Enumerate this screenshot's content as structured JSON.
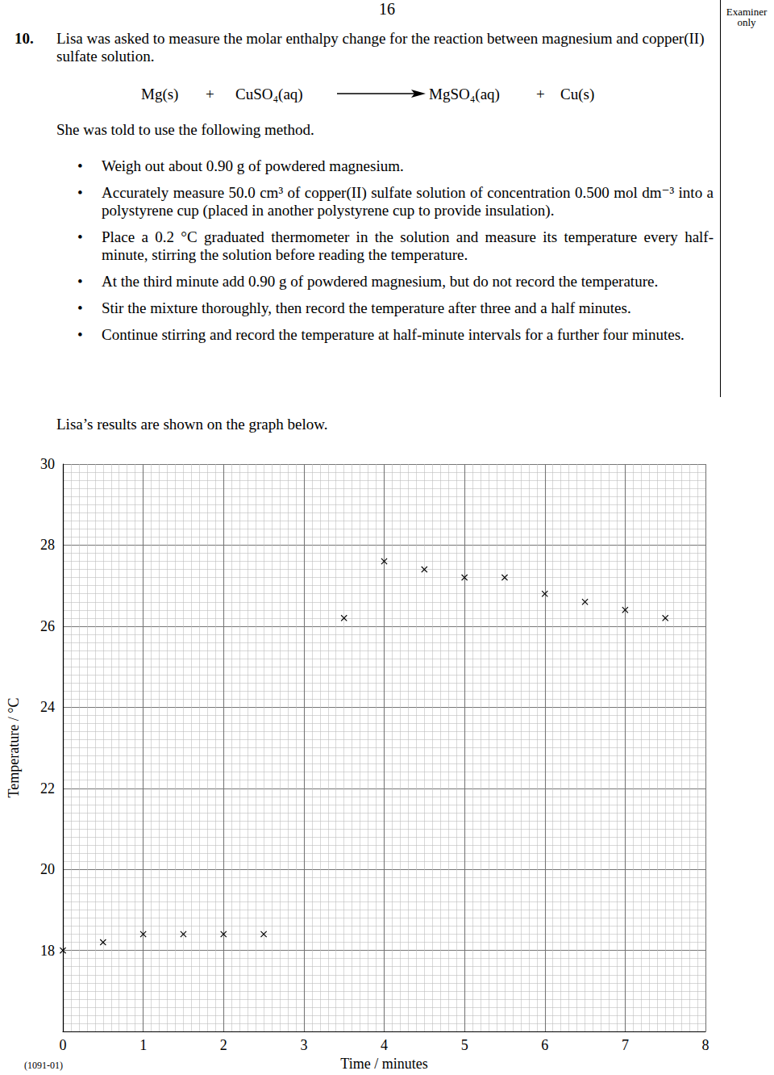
{
  "header": {
    "page_number": "16",
    "margin_label": "Examiner only"
  },
  "question": {
    "number": "10.",
    "intro": "Lisa was asked to measure the molar enthalpy change for the reaction between magnesium and copper(II) sulfate solution.",
    "equation": {
      "reactants": [
        "Mg(s)",
        "CuSO₄(aq)"
      ],
      "products": [
        "MgSO₄(aq)",
        "Cu(s)"
      ],
      "plus": "+"
    },
    "method_intro": "She was told to use the following method.",
    "method": [
      "Weigh out about 0.90 g of powdered magnesium.",
      "Accurately measure 50.0 cm³ of copper(II) sulfate solution of concentration 0.500 mol dm⁻³ into a polystyrene cup (placed in another polystyrene cup to provide insulation).",
      "Place a 0.2 °C graduated thermometer in the solution and measure its temperature every half-minute, stirring the solution before reading the temperature.",
      "At the third minute add 0.90 g of powdered magnesium, but do not record the temperature.",
      "Stir the mixture thoroughly, then record the temperature after three and a half minutes.",
      "Continue stirring and record the temperature at half-minute intervals for a further four minutes."
    ],
    "results_intro": "Lisa’s results are shown on the graph below."
  },
  "footer": {
    "code": "(1091-01)"
  },
  "chart_data": {
    "type": "scatter",
    "x_label": "Time / minutes",
    "y_label": "Temperature / °C",
    "x": [
      0,
      0.5,
      1,
      1.5,
      2,
      2.5,
      3.5,
      4,
      4.5,
      5,
      5.5,
      6,
      6.5,
      7,
      7.5
    ],
    "values": [
      18.0,
      18.2,
      18.4,
      18.4,
      18.4,
      18.4,
      26.2,
      27.6,
      27.4,
      27.2,
      27.2,
      26.8,
      26.6,
      26.4,
      26.2
    ],
    "color": "#000000",
    "marker": "x",
    "xlim": [
      0,
      8
    ],
    "xticks": [
      0,
      1,
      2,
      3,
      4,
      5,
      6,
      7,
      8
    ],
    "ylim": [
      16,
      30
    ],
    "yticks": [
      18,
      20,
      22,
      24,
      26,
      28,
      30
    ],
    "grid": true
  }
}
